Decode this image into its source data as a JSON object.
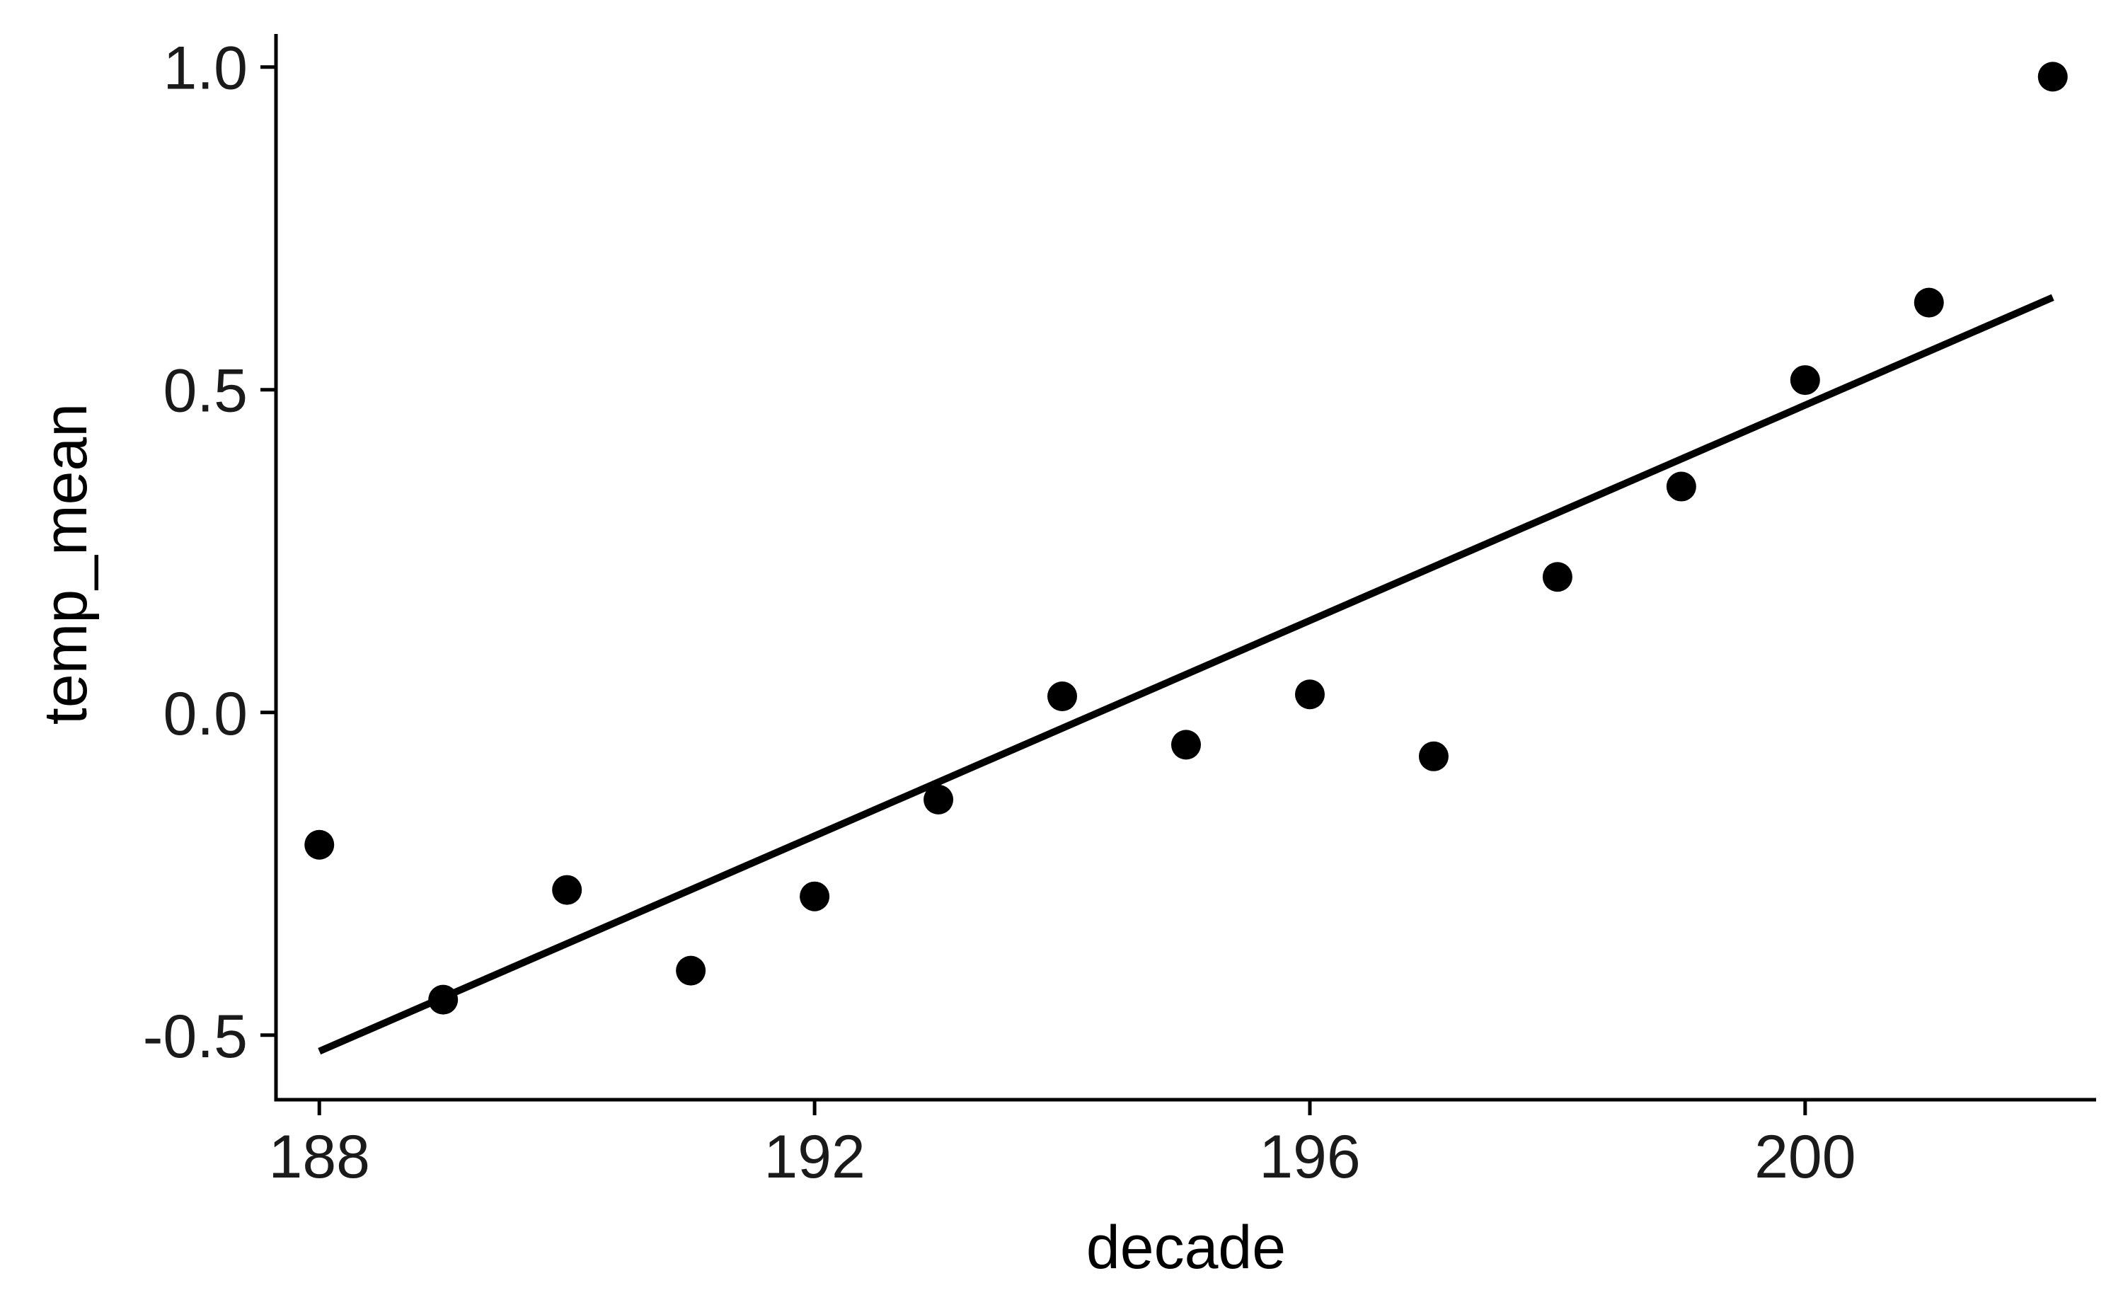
{
  "chart_data": {
    "type": "scatter",
    "title": "",
    "xlabel": "decade",
    "ylabel": "temp_mean",
    "xlim": [
      187.65,
      202.35
    ],
    "ylim": [
      -0.6,
      1.06
    ],
    "x_ticks": [
      188,
      192,
      196,
      200
    ],
    "x_tick_labels": [
      "188",
      "192",
      "196",
      "200"
    ],
    "y_ticks": [
      -0.5,
      0.0,
      0.5,
      1.0
    ],
    "y_tick_labels": [
      "-0.5",
      "0.0",
      "0.5",
      "1.0"
    ],
    "grid": false,
    "legend": "none",
    "series": [
      {
        "type": "scatter",
        "x": [
          188,
          189,
          190,
          191,
          192,
          193,
          194,
          195,
          196,
          197,
          198,
          199,
          200,
          201,
          202
        ],
        "y": [
          -0.205,
          -0.445,
          -0.275,
          -0.4,
          -0.285,
          -0.135,
          0.025,
          -0.05,
          0.028,
          -0.068,
          0.21,
          0.35,
          0.515,
          0.635,
          0.985
        ],
        "color": "#000000"
      },
      {
        "type": "line",
        "x": [
          188,
          202
        ],
        "y": [
          -0.525,
          0.643
        ],
        "color": "#000000"
      }
    ]
  }
}
